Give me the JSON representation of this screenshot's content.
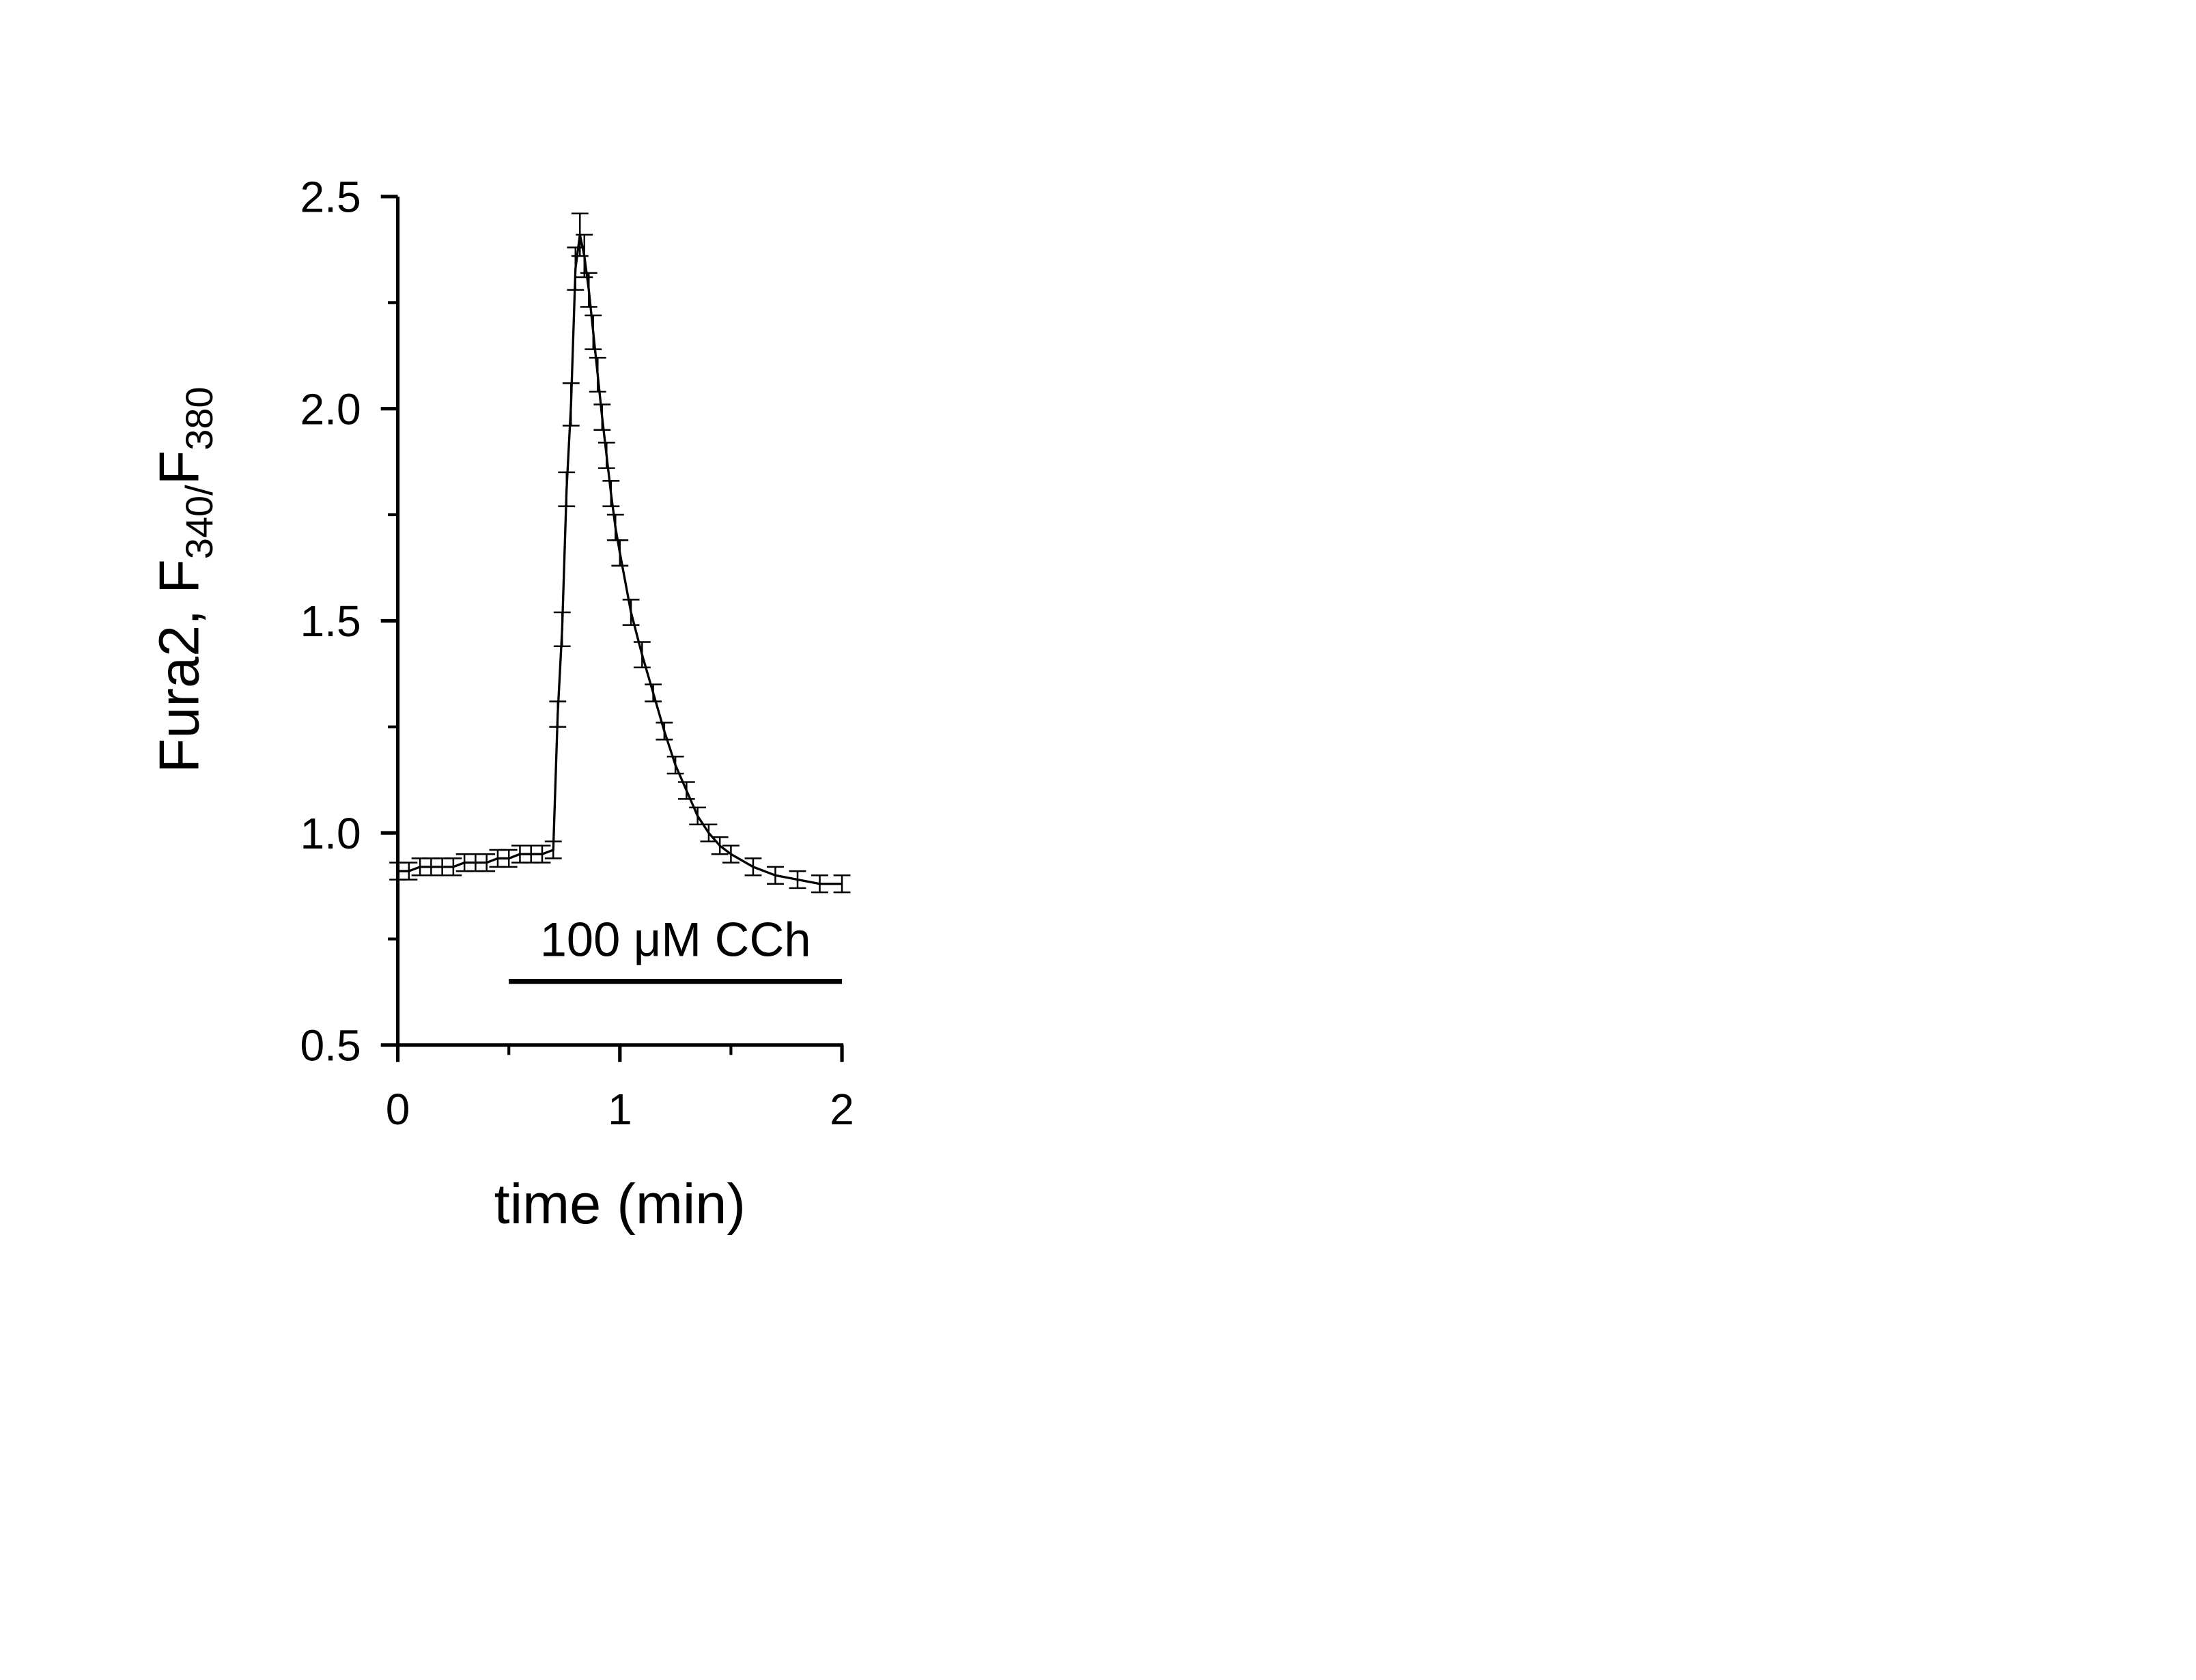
{
  "chart_data": {
    "type": "line",
    "xlabel": "time (min)",
    "ylabel": [
      "Fura2, F",
      "340/",
      "F",
      "380"
    ],
    "xlim": [
      0,
      2
    ],
    "xticks": [
      0,
      1,
      2
    ],
    "xminor": [
      0.5,
      1.5
    ],
    "ylim": [
      0.5,
      2.5
    ],
    "yticks": [
      0.5,
      {
        "value": 1,
        "label": "1.0"
      },
      1.5,
      {
        "value": 2,
        "label": "2.0"
      },
      2.5
    ],
    "yminor": [
      0.75,
      1.25,
      1.75,
      2.25
    ],
    "grid": false,
    "color": "#000000",
    "x": [
      0,
      0.05,
      0.1,
      0.15,
      0.2,
      0.25,
      0.3,
      0.35,
      0.4,
      0.45,
      0.5,
      0.55,
      0.6,
      0.65,
      0.7,
      0.72,
      0.74,
      0.76,
      0.78,
      0.8,
      0.82,
      0.84,
      0.86,
      0.88,
      0.9,
      0.92,
      0.94,
      0.96,
      0.98,
      1.0,
      1.05,
      1.1,
      1.15,
      1.2,
      1.25,
      1.3,
      1.35,
      1.4,
      1.45,
      1.5,
      1.6,
      1.7,
      1.8,
      1.9,
      2.0
    ],
    "values": [
      0.91,
      0.91,
      0.92,
      0.92,
      0.92,
      0.92,
      0.93,
      0.93,
      0.93,
      0.94,
      0.94,
      0.95,
      0.95,
      0.95,
      0.96,
      1.28,
      1.48,
      1.81,
      2.01,
      2.33,
      2.41,
      2.36,
      2.28,
      2.18,
      2.08,
      1.98,
      1.89,
      1.8,
      1.72,
      1.66,
      1.52,
      1.42,
      1.33,
      1.24,
      1.16,
      1.1,
      1.04,
      1.0,
      0.97,
      0.95,
      0.92,
      0.9,
      0.89,
      0.88,
      0.88
    ],
    "errors": [
      0.02,
      0.02,
      0.02,
      0.02,
      0.02,
      0.02,
      0.02,
      0.02,
      0.02,
      0.02,
      0.02,
      0.02,
      0.02,
      0.02,
      0.02,
      0.03,
      0.04,
      0.04,
      0.05,
      0.05,
      0.05,
      0.05,
      0.04,
      0.04,
      0.04,
      0.03,
      0.03,
      0.03,
      0.03,
      0.03,
      0.03,
      0.03,
      0.02,
      0.02,
      0.02,
      0.02,
      0.02,
      0.02,
      0.02,
      0.02,
      0.02,
      0.02,
      0.02,
      0.02,
      0.02
    ],
    "annotation": {
      "text": "100 μM CCh",
      "x": [
        0.5,
        2
      ],
      "y": 0.65
    }
  }
}
